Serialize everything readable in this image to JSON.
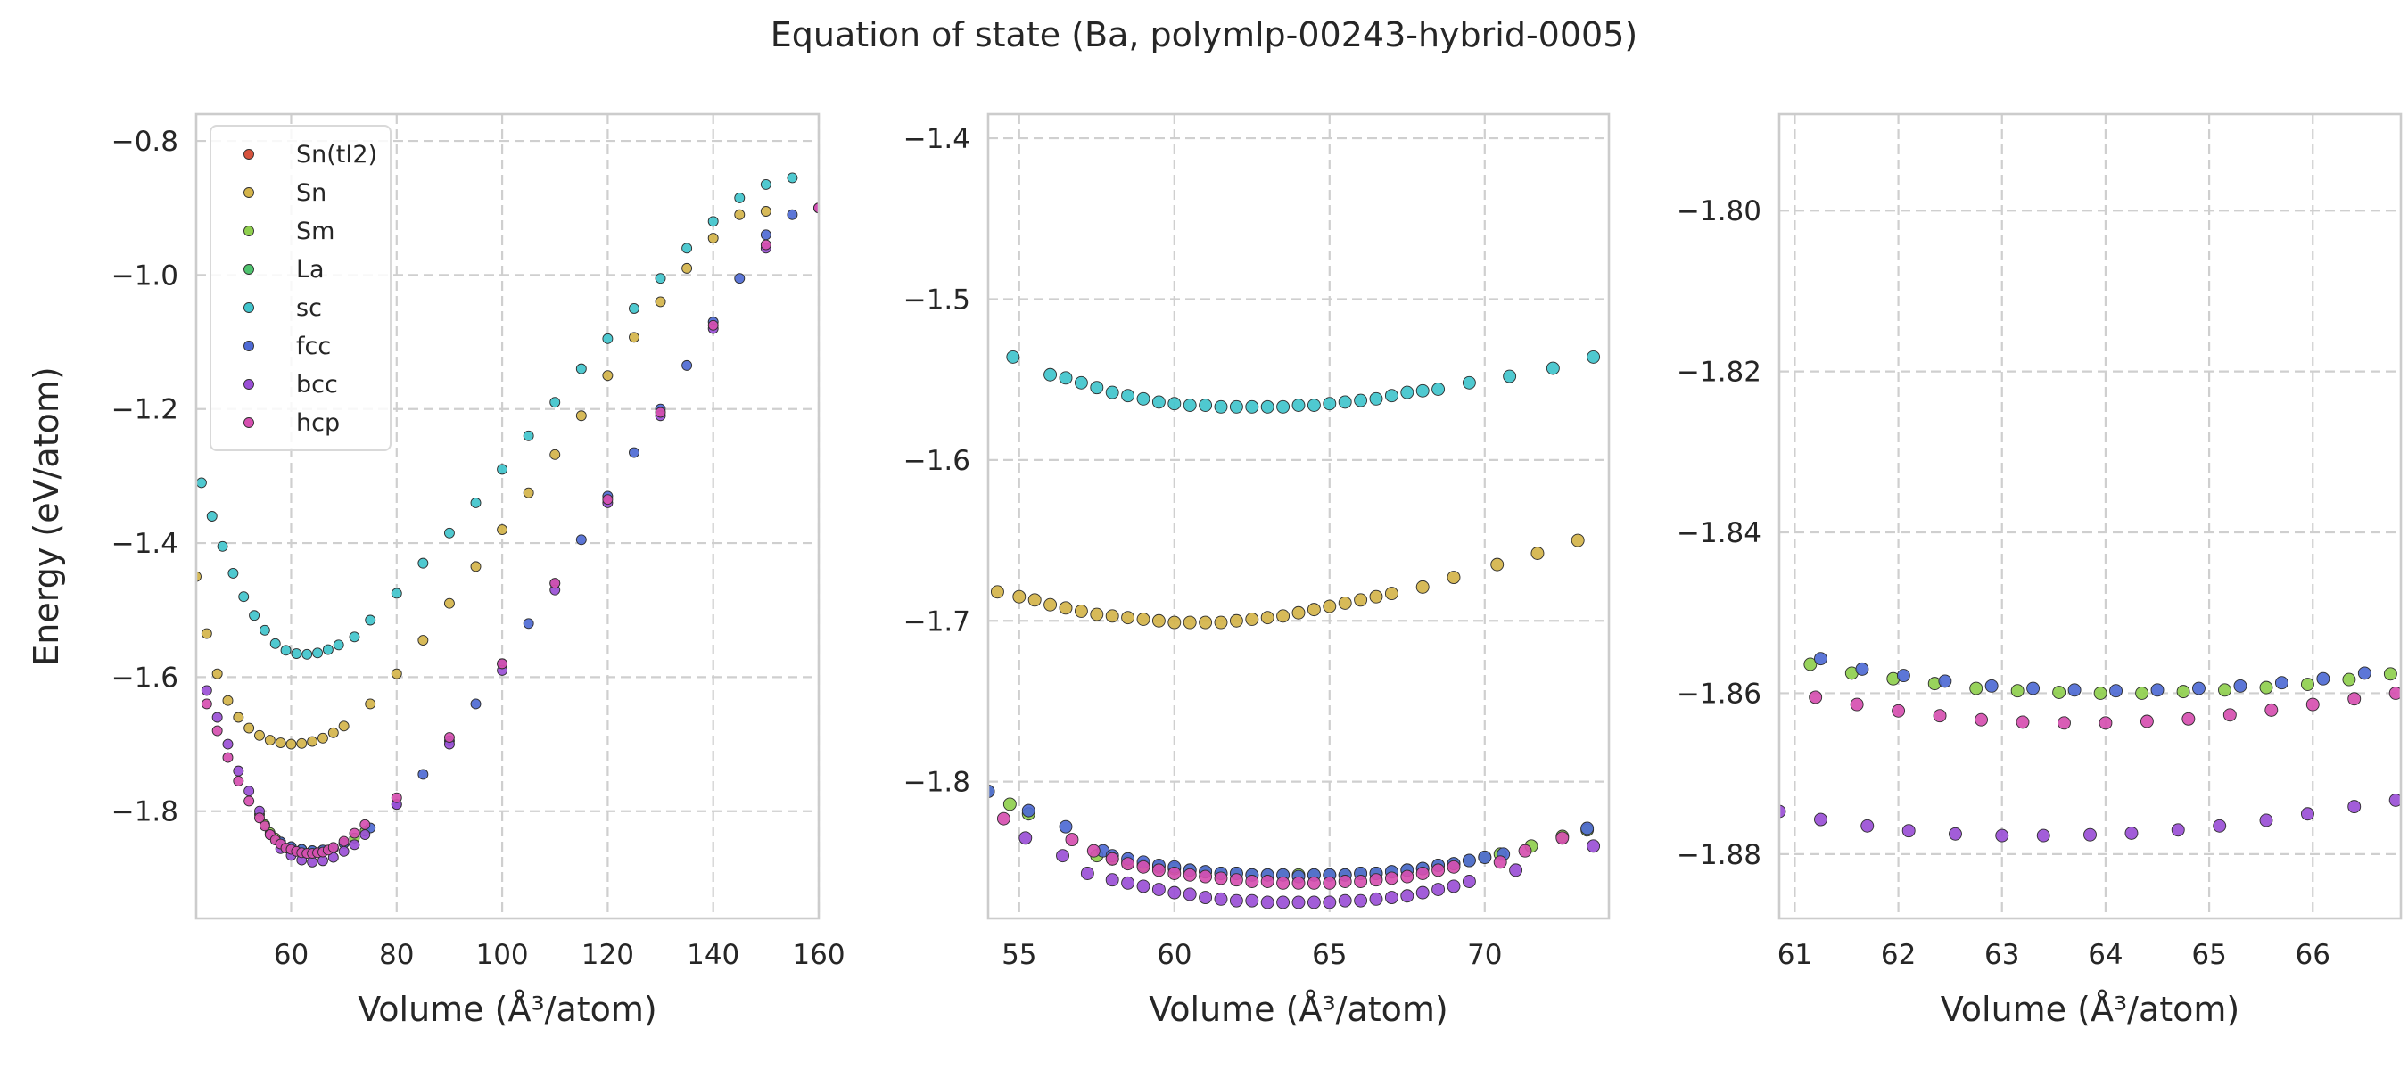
{
  "figure": {
    "title": "Equation of state (Ba, polymlp-00243-hybrid-0005)"
  },
  "chart_data": [
    {
      "type": "scatter",
      "panel": "overview",
      "xlabel": "Volume (Å³/atom)",
      "ylabel": "Energy (eV/atom)",
      "xlim": [
        42,
        160
      ],
      "ylim": [
        -1.96,
        -0.76
      ],
      "xticks": [
        60,
        80,
        100,
        120,
        140,
        160
      ],
      "yticks": [
        -1.8,
        -1.6,
        -1.4,
        -1.2,
        -1.0,
        -0.8
      ],
      "ytick_labels": [
        "−1.8",
        "−1.6",
        "−1.4",
        "−1.2",
        "−1.0",
        "−0.8"
      ],
      "grid": true,
      "legend": "upper-left",
      "legend_entries": [
        "Sn(tI2)",
        "Sn",
        "Sm",
        "La",
        "sc",
        "fcc",
        "bcc",
        "hcp"
      ],
      "series": [
        {
          "name": "Sn(tI2)",
          "color": "#d6533e",
          "x": [],
          "y": []
        },
        {
          "name": "Sn",
          "color": "#d4b44a",
          "x": [
            42,
            44,
            46,
            48,
            50,
            52,
            54,
            56,
            58,
            60,
            62,
            64,
            66,
            68,
            70,
            75,
            80,
            85,
            90,
            95,
            100,
            105,
            110,
            115,
            120,
            125,
            130,
            135,
            140,
            145,
            150
          ],
          "y": [
            -1.45,
            -1.535,
            -1.595,
            -1.635,
            -1.66,
            -1.676,
            -1.687,
            -1.694,
            -1.698,
            -1.7,
            -1.699,
            -1.696,
            -1.691,
            -1.683,
            -1.673,
            -1.64,
            -1.595,
            -1.545,
            -1.49,
            -1.435,
            -1.38,
            -1.325,
            -1.268,
            -1.21,
            -1.15,
            -1.093,
            -1.04,
            -0.99,
            -0.945,
            -0.91,
            -0.905
          ]
        },
        {
          "name": "Sm",
          "color": "#8fcf4e",
          "x": [
            54,
            55,
            56,
            57,
            58,
            60,
            62,
            64,
            66,
            68,
            70,
            72,
            74
          ],
          "y": [
            -1.805,
            -1.82,
            -1.832,
            -1.84,
            -1.846,
            -1.853,
            -1.857,
            -1.859,
            -1.858,
            -1.855,
            -1.848,
            -1.84,
            -1.83
          ]
        },
        {
          "name": "La",
          "color": "#4fc36e",
          "x": [
            58,
            60,
            62,
            64,
            66,
            68,
            70
          ],
          "y": [
            -1.846,
            -1.853,
            -1.857,
            -1.859,
            -1.858,
            -1.855,
            -1.848
          ]
        },
        {
          "name": "sc",
          "color": "#40c4cc",
          "x": [
            43,
            45,
            47,
            49,
            51,
            53,
            55,
            57,
            59,
            61,
            63,
            65,
            67,
            69,
            72,
            75,
            80,
            85,
            90,
            95,
            100,
            105,
            110,
            115,
            120,
            125,
            130,
            135,
            140,
            145,
            150,
            155
          ],
          "y": [
            -1.31,
            -1.36,
            -1.405,
            -1.445,
            -1.48,
            -1.508,
            -1.53,
            -1.55,
            -1.56,
            -1.565,
            -1.566,
            -1.564,
            -1.559,
            -1.552,
            -1.54,
            -1.515,
            -1.475,
            -1.43,
            -1.385,
            -1.34,
            -1.29,
            -1.24,
            -1.19,
            -1.14,
            -1.095,
            -1.05,
            -1.005,
            -0.96,
            -0.92,
            -0.885,
            -0.865,
            -0.855
          ]
        },
        {
          "name": "fcc",
          "color": "#4e6ad4",
          "x": [
            58,
            60,
            62,
            64,
            66,
            68,
            70,
            75,
            80,
            85,
            90,
            95,
            100,
            105,
            110,
            115,
            120,
            125,
            130,
            135,
            140,
            145,
            150,
            155,
            160
          ],
          "y": [
            -1.846,
            -1.853,
            -1.857,
            -1.859,
            -1.858,
            -1.855,
            -1.848,
            -1.825,
            -1.79,
            -1.745,
            -1.695,
            -1.64,
            -1.58,
            -1.52,
            -1.46,
            -1.395,
            -1.33,
            -1.265,
            -1.2,
            -1.135,
            -1.07,
            -1.005,
            -0.94,
            -0.91,
            -0.9
          ]
        },
        {
          "name": "bcc",
          "color": "#9a4fd6",
          "x": [
            44,
            46,
            48,
            50,
            52,
            54,
            56,
            58,
            60,
            62,
            64,
            66,
            68,
            70,
            72,
            74,
            80,
            90,
            100,
            110,
            120,
            130,
            140,
            150,
            160
          ],
          "y": [
            -1.62,
            -1.66,
            -1.7,
            -1.74,
            -1.77,
            -1.8,
            -1.835,
            -1.856,
            -1.866,
            -1.873,
            -1.876,
            -1.874,
            -1.869,
            -1.86,
            -1.85,
            -1.835,
            -1.79,
            -1.7,
            -1.59,
            -1.47,
            -1.34,
            -1.21,
            -1.08,
            -0.96,
            -0.9
          ]
        },
        {
          "name": "hcp",
          "color": "#d64fb0",
          "x": [
            44,
            46,
            48,
            50,
            52,
            54,
            55,
            56,
            57,
            58,
            59,
            60,
            61,
            62,
            63,
            64,
            65,
            66,
            67,
            68,
            70,
            72,
            74,
            80,
            90,
            100,
            110,
            120,
            130,
            140,
            150,
            160
          ],
          "y": [
            -1.64,
            -1.68,
            -1.72,
            -1.755,
            -1.785,
            -1.81,
            -1.822,
            -1.835,
            -1.843,
            -1.849,
            -1.855,
            -1.857,
            -1.86,
            -1.862,
            -1.863,
            -1.863,
            -1.862,
            -1.861,
            -1.858,
            -1.854,
            -1.845,
            -1.833,
            -1.82,
            -1.78,
            -1.69,
            -1.58,
            -1.46,
            -1.335,
            -1.205,
            -1.075,
            -0.955,
            -0.9
          ]
        }
      ]
    },
    {
      "type": "scatter",
      "panel": "zoom-1",
      "xlabel": "Volume (Å³/atom)",
      "ylabel": "",
      "xlim": [
        54,
        74
      ],
      "ylim": [
        -1.885,
        -1.385
      ],
      "xticks": [
        55,
        60,
        65,
        70
      ],
      "yticks": [
        -1.8,
        -1.7,
        -1.6,
        -1.5,
        -1.4
      ],
      "ytick_labels": [
        "−1.8",
        "−1.7",
        "−1.6",
        "−1.5",
        "−1.4"
      ],
      "grid": true,
      "series": [
        {
          "name": "sc",
          "color": "#40c4cc",
          "x": [
            54.8,
            56.0,
            56.5,
            57.0,
            57.5,
            58.0,
            58.5,
            59.0,
            59.5,
            60.0,
            60.5,
            61.0,
            61.5,
            62.0,
            62.5,
            63.0,
            63.5,
            64.0,
            64.5,
            65.0,
            65.5,
            66.0,
            66.5,
            67.0,
            67.5,
            68.0,
            68.5,
            69.5,
            70.8,
            72.2,
            73.5
          ],
          "y": [
            -1.536,
            -1.547,
            -1.549,
            -1.552,
            -1.555,
            -1.558,
            -1.56,
            -1.562,
            -1.564,
            -1.565,
            -1.566,
            -1.566,
            -1.567,
            -1.567,
            -1.567,
            -1.567,
            -1.567,
            -1.566,
            -1.566,
            -1.565,
            -1.564,
            -1.563,
            -1.562,
            -1.56,
            -1.558,
            -1.557,
            -1.556,
            -1.552,
            -1.548,
            -1.543,
            -1.536
          ]
        },
        {
          "name": "Sn",
          "color": "#d4b44a",
          "x": [
            54.3,
            55.0,
            55.5,
            56.0,
            56.5,
            57.0,
            57.5,
            58.0,
            58.5,
            59.0,
            59.5,
            60.0,
            60.5,
            61.0,
            61.5,
            62.0,
            62.5,
            63.0,
            63.5,
            64.0,
            64.5,
            65.0,
            65.5,
            66.0,
            66.5,
            67.0,
            68.0,
            69.0,
            70.4,
            71.7,
            73.0
          ],
          "y": [
            -1.682,
            -1.685,
            -1.687,
            -1.69,
            -1.692,
            -1.694,
            -1.696,
            -1.697,
            -1.698,
            -1.699,
            -1.7,
            -1.701,
            -1.701,
            -1.701,
            -1.701,
            -1.7,
            -1.699,
            -1.698,
            -1.697,
            -1.695,
            -1.693,
            -1.691,
            -1.689,
            -1.687,
            -1.685,
            -1.683,
            -1.679,
            -1.673,
            -1.665,
            -1.658,
            -1.65
          ]
        },
        {
          "name": "Sm",
          "color": "#8fcf4e",
          "x": [
            54.0,
            54.7,
            55.3,
            57.5,
            58.0,
            58.5,
            59.0,
            59.5,
            60.0,
            60.5,
            61.0,
            61.5,
            62.0,
            62.5,
            63.0,
            63.5,
            64.0,
            64.5,
            65.0,
            65.5,
            66.0,
            66.5,
            67.0,
            67.5,
            68.0,
            68.5,
            69.0,
            69.5,
            70.0,
            70.5,
            71.5,
            72.5,
            73.3
          ],
          "y": [
            -1.806,
            -1.814,
            -1.82,
            -1.846,
            -1.848,
            -1.85,
            -1.852,
            -1.853,
            -1.854,
            -1.855,
            -1.856,
            -1.857,
            -1.857,
            -1.858,
            -1.858,
            -1.858,
            -1.858,
            -1.858,
            -1.858,
            -1.858,
            -1.857,
            -1.857,
            -1.856,
            -1.855,
            -1.854,
            -1.852,
            -1.851,
            -1.849,
            -1.847,
            -1.845,
            -1.84,
            -1.834,
            -1.83
          ]
        },
        {
          "name": "fcc",
          "color": "#4e6ad4",
          "x": [
            54.0,
            55.3,
            56.5,
            57.7,
            58.0,
            58.5,
            59.0,
            59.5,
            60.0,
            60.5,
            61.0,
            61.5,
            62.0,
            62.5,
            63.0,
            63.5,
            64.0,
            64.5,
            65.0,
            65.5,
            66.0,
            66.5,
            67.0,
            67.5,
            68.0,
            68.5,
            69.0,
            69.5,
            70.0,
            70.6,
            73.3
          ],
          "y": [
            -1.806,
            -1.818,
            -1.828,
            -1.843,
            -1.846,
            -1.848,
            -1.85,
            -1.852,
            -1.853,
            -1.855,
            -1.856,
            -1.857,
            -1.857,
            -1.858,
            -1.858,
            -1.858,
            -1.859,
            -1.858,
            -1.858,
            -1.858,
            -1.857,
            -1.857,
            -1.856,
            -1.855,
            -1.854,
            -1.852,
            -1.851,
            -1.849,
            -1.847,
            -1.845,
            -1.829
          ]
        },
        {
          "name": "hcp",
          "color": "#d64fb0",
          "x": [
            54.5,
            56.7,
            57.4,
            58.0,
            58.5,
            59.0,
            59.5,
            60.0,
            60.5,
            61.0,
            61.5,
            62.0,
            62.5,
            63.0,
            63.5,
            64.0,
            64.5,
            65.0,
            65.5,
            66.0,
            66.5,
            67.0,
            67.5,
            68.0,
            68.5,
            69.0,
            70.5,
            71.3,
            72.5
          ],
          "y": [
            -1.823,
            -1.836,
            -1.843,
            -1.848,
            -1.851,
            -1.853,
            -1.855,
            -1.857,
            -1.858,
            -1.859,
            -1.86,
            -1.861,
            -1.862,
            -1.862,
            -1.863,
            -1.863,
            -1.863,
            -1.863,
            -1.862,
            -1.862,
            -1.861,
            -1.86,
            -1.859,
            -1.857,
            -1.855,
            -1.853,
            -1.85,
            -1.843,
            -1.835
          ]
        },
        {
          "name": "bcc",
          "color": "#9a4fd6",
          "x": [
            55.2,
            56.4,
            57.2,
            58.0,
            58.5,
            59.0,
            59.5,
            60.0,
            60.5,
            61.0,
            61.5,
            62.0,
            62.5,
            63.0,
            63.5,
            64.0,
            64.5,
            65.0,
            65.5,
            66.0,
            66.5,
            67.0,
            67.5,
            68.0,
            68.5,
            69.0,
            69.5,
            71.0,
            73.5
          ],
          "y": [
            -1.835,
            -1.846,
            -1.857,
            -1.861,
            -1.863,
            -1.865,
            -1.867,
            -1.869,
            -1.87,
            -1.872,
            -1.873,
            -1.874,
            -1.874,
            -1.875,
            -1.875,
            -1.875,
            -1.875,
            -1.875,
            -1.874,
            -1.874,
            -1.873,
            -1.872,
            -1.871,
            -1.869,
            -1.867,
            -1.865,
            -1.862,
            -1.855,
            -1.84
          ]
        }
      ]
    },
    {
      "type": "scatter",
      "panel": "zoom-2",
      "xlabel": "Volume (Å³/atom)",
      "ylabel": "",
      "xlim": [
        60.85,
        66.85
      ],
      "ylim": [
        -1.888,
        -1.788
      ],
      "xticks": [
        61,
        62,
        63,
        64,
        65,
        66
      ],
      "yticks": [
        -1.88,
        -1.86,
        -1.84,
        -1.82,
        -1.8
      ],
      "ytick_labels": [
        "−1.88",
        "−1.86",
        "−1.84",
        "−1.82",
        "−1.80"
      ],
      "grid": true,
      "series": [
        {
          "name": "Sm",
          "color": "#8fcf4e",
          "x": [
            61.15,
            61.55,
            61.95,
            62.35,
            62.75,
            63.15,
            63.55,
            63.95,
            64.35,
            64.75,
            65.15,
            65.55,
            65.95,
            66.35,
            66.75
          ],
          "y": [
            -1.8564,
            -1.8575,
            -1.8582,
            -1.8588,
            -1.8594,
            -1.8597,
            -1.8599,
            -1.86,
            -1.86,
            -1.8598,
            -1.8596,
            -1.8593,
            -1.8589,
            -1.8583,
            -1.8576
          ]
        },
        {
          "name": "fcc",
          "color": "#4e6ad4",
          "x": [
            61.25,
            61.65,
            62.05,
            62.45,
            62.9,
            63.3,
            63.7,
            64.1,
            64.5,
            64.9,
            65.3,
            65.7,
            66.1,
            66.5
          ],
          "y": [
            -1.8557,
            -1.857,
            -1.8578,
            -1.8585,
            -1.8591,
            -1.8594,
            -1.8596,
            -1.8597,
            -1.8596,
            -1.8594,
            -1.8591,
            -1.8587,
            -1.8582,
            -1.8575
          ]
        },
        {
          "name": "hcp",
          "color": "#d64fb0",
          "x": [
            61.2,
            61.6,
            62.0,
            62.4,
            62.8,
            63.2,
            63.6,
            64.0,
            64.4,
            64.8,
            65.2,
            65.6,
            66.0,
            66.4,
            66.8
          ],
          "y": [
            -1.8605,
            -1.8614,
            -1.8622,
            -1.8628,
            -1.8633,
            -1.8636,
            -1.8637,
            -1.8637,
            -1.8635,
            -1.8632,
            -1.8627,
            -1.8621,
            -1.8614,
            -1.8607,
            -1.86
          ]
        },
        {
          "name": "bcc",
          "color": "#9a4fd6",
          "x": [
            60.85,
            61.25,
            61.7,
            62.1,
            62.55,
            63.0,
            63.4,
            63.85,
            64.25,
            64.7,
            65.1,
            65.55,
            65.95,
            66.4,
            66.8
          ],
          "y": [
            -1.8747,
            -1.8757,
            -1.8765,
            -1.8771,
            -1.8775,
            -1.8777,
            -1.8777,
            -1.8776,
            -1.8774,
            -1.877,
            -1.8765,
            -1.8758,
            -1.875,
            -1.8741,
            -1.8733
          ]
        }
      ]
    }
  ]
}
